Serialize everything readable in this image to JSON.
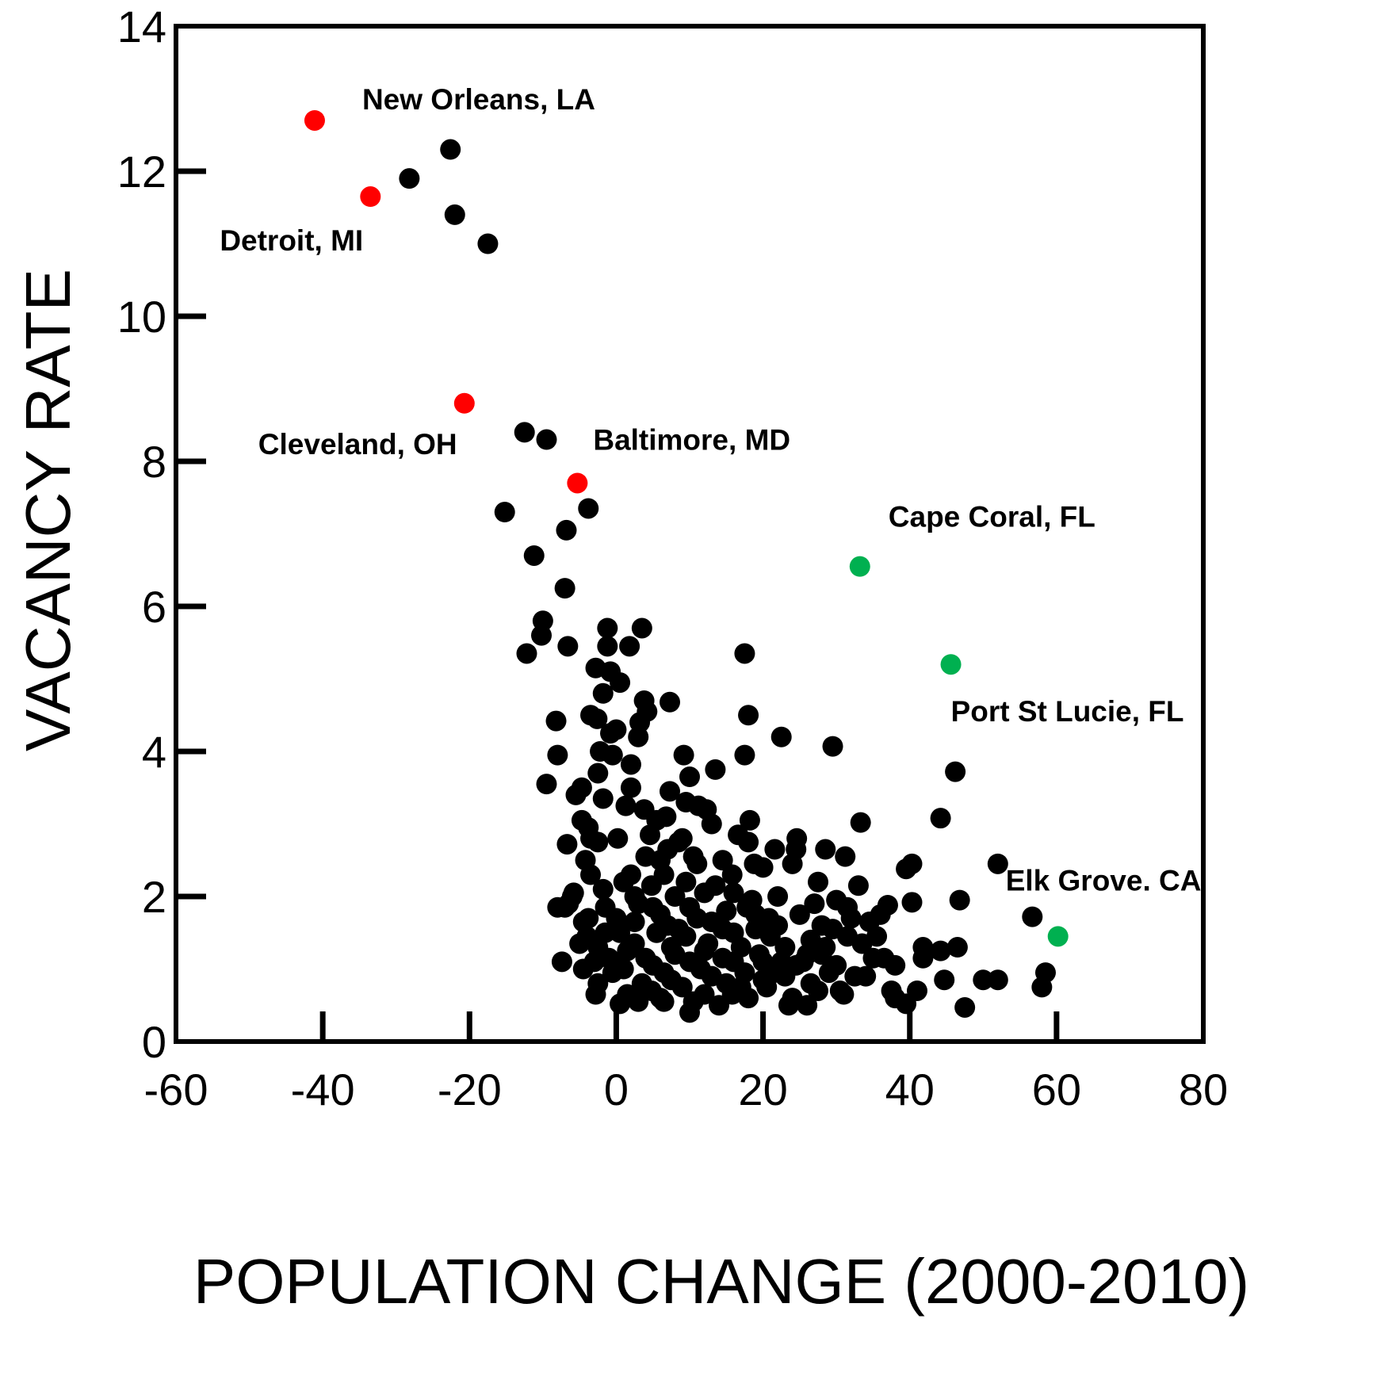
{
  "chart_data": {
    "type": "scatter",
    "title": "",
    "xlabel": "POPULATION CHANGE (2000-2010)",
    "ylabel": "VACANCY RATE",
    "xlim": [
      -60,
      80
    ],
    "ylim": [
      0,
      14
    ],
    "xticks": [
      -60,
      -40,
      -20,
      0,
      20,
      40,
      60,
      80
    ],
    "yticks": [
      0,
      2,
      4,
      6,
      8,
      10,
      12,
      14
    ],
    "grid": false,
    "colors": {
      "default": "#000000",
      "declining": "#ff0000",
      "growing": "#00b050"
    },
    "highlighted": [
      {
        "label": "New Orleans, LA",
        "x": -41.1,
        "y": 12.7,
        "color": "#ff0000"
      },
      {
        "label": "Detroit, MI",
        "x": -33.5,
        "y": 11.65,
        "color": "#ff0000"
      },
      {
        "label": "Cleveland, OH",
        "x": -20.7,
        "y": 8.8,
        "color": "#ff0000"
      },
      {
        "label": "Baltimore, MD",
        "x": -5.3,
        "y": 7.7,
        "color": "#ff0000"
      },
      {
        "label": "Cape Coral, FL",
        "x": 33.2,
        "y": 6.55,
        "color": "#00b050"
      },
      {
        "label": "Port St Lucie, FL",
        "x": 45.6,
        "y": 5.2,
        "color": "#00b050"
      },
      {
        "label": "Elk Grove. CA",
        "x": 60.2,
        "y": 1.45,
        "color": "#00b050"
      }
    ],
    "points": [
      [
        -22.6,
        12.3
      ],
      [
        -28.2,
        11.9
      ],
      [
        -22.0,
        11.4
      ],
      [
        -17.5,
        11.0
      ],
      [
        -12.5,
        8.4
      ],
      [
        -9.5,
        8.3
      ],
      [
        -15.2,
        7.3
      ],
      [
        -3.8,
        7.35
      ],
      [
        -6.8,
        7.05
      ],
      [
        -11.2,
        6.7
      ],
      [
        -7.0,
        6.25
      ],
      [
        -10.0,
        5.8
      ],
      [
        -10.2,
        5.6
      ],
      [
        -12.2,
        5.35
      ],
      [
        -6.6,
        5.45
      ],
      [
        -1.2,
        5.7
      ],
      [
        3.5,
        5.7
      ],
      [
        -1.2,
        5.45
      ],
      [
        1.8,
        5.45
      ],
      [
        -2.8,
        5.15
      ],
      [
        -0.8,
        5.1
      ],
      [
        0.5,
        4.95
      ],
      [
        -1.8,
        4.8
      ],
      [
        3.8,
        4.7
      ],
      [
        7.3,
        4.68
      ],
      [
        4.2,
        4.55
      ],
      [
        -3.5,
        4.5
      ],
      [
        -8.2,
        4.42
      ],
      [
        -2.6,
        4.45
      ],
      [
        3.2,
        4.4
      ],
      [
        0.0,
        4.3
      ],
      [
        -0.8,
        4.25
      ],
      [
        3.0,
        4.2
      ],
      [
        -2.2,
        4.0
      ],
      [
        -0.5,
        3.95
      ],
      [
        -8.0,
        3.95
      ],
      [
        9.2,
        3.95
      ],
      [
        -2.5,
        3.7
      ],
      [
        2.0,
        3.82
      ],
      [
        10.0,
        3.65
      ],
      [
        13.5,
        3.75
      ],
      [
        -9.5,
        3.55
      ],
      [
        -4.7,
        3.5
      ],
      [
        2.0,
        3.5
      ],
      [
        -5.5,
        3.4
      ],
      [
        7.3,
        3.45
      ],
      [
        -1.8,
        3.35
      ],
      [
        1.3,
        3.25
      ],
      [
        3.8,
        3.2
      ],
      [
        9.5,
        3.3
      ],
      [
        11.2,
        3.25
      ],
      [
        12.3,
        3.2
      ],
      [
        -4.7,
        3.05
      ],
      [
        6.8,
        3.1
      ],
      [
        5.5,
        3.05
      ],
      [
        13.0,
        3.0
      ],
      [
        18.2,
        3.05
      ],
      [
        -3.8,
        2.95
      ],
      [
        4.6,
        2.85
      ],
      [
        -6.7,
        2.72
      ],
      [
        -3.5,
        2.8
      ],
      [
        0.2,
        2.8
      ],
      [
        9.0,
        2.8
      ],
      [
        16.6,
        2.85
      ],
      [
        18.0,
        2.75
      ],
      [
        24.6,
        2.8
      ],
      [
        21.6,
        2.65
      ],
      [
        24.5,
        2.65
      ],
      [
        28.5,
        2.65
      ],
      [
        31.2,
        2.55
      ],
      [
        6.0,
        2.5
      ],
      [
        11.0,
        2.45
      ],
      [
        -4.2,
        2.5
      ],
      [
        20.0,
        2.4
      ],
      [
        24.0,
        2.45
      ],
      [
        18.8,
        2.45
      ],
      [
        15.8,
        2.3
      ],
      [
        -3.5,
        2.3
      ],
      [
        1.0,
        2.2
      ],
      [
        4.8,
        2.15
      ],
      [
        27.5,
        2.2
      ],
      [
        33.0,
        2.15
      ],
      [
        -5.8,
        2.05
      ],
      [
        2.5,
        2.0
      ],
      [
        8.0,
        2.0
      ],
      [
        12.0,
        2.05
      ],
      [
        18.5,
        1.95
      ],
      [
        30.0,
        1.95
      ],
      [
        -7.0,
        1.85
      ],
      [
        -1.5,
        1.85
      ],
      [
        5.0,
        1.85
      ],
      [
        10.0,
        1.85
      ],
      [
        15.0,
        1.8
      ],
      [
        19.0,
        1.75
      ],
      [
        25.0,
        1.75
      ],
      [
        32.0,
        1.7
      ],
      [
        36.0,
        1.75
      ],
      [
        -4.5,
        1.65
      ],
      [
        2.5,
        1.65
      ],
      [
        7.0,
        1.6
      ],
      [
        13.0,
        1.65
      ],
      [
        22.0,
        1.6
      ],
      [
        28.0,
        1.6
      ],
      [
        34.5,
        1.65
      ],
      [
        -4.0,
        1.45
      ],
      [
        0.5,
        1.5
      ],
      [
        5.5,
        1.5
      ],
      [
        9.5,
        1.45
      ],
      [
        16.0,
        1.5
      ],
      [
        21.0,
        1.45
      ],
      [
        26.5,
        1.4
      ],
      [
        31.5,
        1.45
      ],
      [
        -2.5,
        1.3
      ],
      [
        2.5,
        1.35
      ],
      [
        7.5,
        1.3
      ],
      [
        12.5,
        1.35
      ],
      [
        17.0,
        1.3
      ],
      [
        23.0,
        1.3
      ],
      [
        28.5,
        1.3
      ],
      [
        41.8,
        1.3
      ],
      [
        44.2,
        1.25
      ],
      [
        46.5,
        1.3
      ],
      [
        -7.4,
        1.1
      ],
      [
        -1.0,
        1.15
      ],
      [
        4.0,
        1.15
      ],
      [
        10.0,
        1.1
      ],
      [
        14.5,
        1.15
      ],
      [
        20.0,
        1.1
      ],
      [
        25.5,
        1.1
      ],
      [
        30.0,
        1.05
      ],
      [
        35.0,
        1.15
      ],
      [
        41.8,
        1.15
      ],
      [
        -4.5,
        1.0
      ],
      [
        1.0,
        1.0
      ],
      [
        6.5,
        0.95
      ],
      [
        11.5,
        1.0
      ],
      [
        17.5,
        0.95
      ],
      [
        23.0,
        0.9
      ],
      [
        29.0,
        0.95
      ],
      [
        34.0,
        0.9
      ],
      [
        58.5,
        0.95
      ],
      [
        -2.5,
        0.8
      ],
      [
        3.5,
        0.8
      ],
      [
        9.0,
        0.75
      ],
      [
        15.0,
        0.8
      ],
      [
        20.5,
        0.75
      ],
      [
        26.5,
        0.8
      ],
      [
        44.7,
        0.85
      ],
      [
        50.0,
        0.85
      ],
      [
        52.0,
        0.85
      ],
      [
        -2.8,
        0.65
      ],
      [
        1.5,
        0.65
      ],
      [
        6.0,
        0.6
      ],
      [
        12.0,
        0.65
      ],
      [
        18.0,
        0.6
      ],
      [
        24.0,
        0.6
      ],
      [
        31.0,
        0.65
      ],
      [
        37.5,
        0.7
      ],
      [
        41.0,
        0.7
      ],
      [
        58.0,
        0.75
      ],
      [
        0.5,
        0.52
      ],
      [
        6.5,
        0.55
      ],
      [
        14.0,
        0.5
      ],
      [
        23.5,
        0.5
      ],
      [
        26.0,
        0.5
      ],
      [
        38.0,
        0.6
      ],
      [
        39.5,
        0.52
      ],
      [
        47.5,
        0.47
      ],
      [
        10.0,
        0.4
      ],
      [
        17.5,
        5.35
      ],
      [
        18.0,
        4.5
      ],
      [
        22.5,
        4.2
      ],
      [
        29.5,
        4.07
      ],
      [
        17.5,
        3.95
      ],
      [
        46.2,
        3.72
      ],
      [
        33.3,
        3.02
      ],
      [
        44.2,
        3.08
      ],
      [
        52.0,
        2.45
      ],
      [
        39.5,
        2.38
      ],
      [
        40.3,
        2.45
      ],
      [
        40.3,
        1.92
      ],
      [
        46.8,
        1.95
      ],
      [
        56.7,
        1.72
      ],
      [
        38.0,
        1.05
      ],
      [
        -8.0,
        1.85
      ],
      [
        -6.0,
        2.0
      ],
      [
        13.5,
        2.15
      ],
      [
        16.0,
        2.05
      ],
      [
        22.0,
        2.0
      ],
      [
        27.0,
        1.9
      ],
      [
        37.0,
        1.88
      ],
      [
        19.0,
        1.55
      ],
      [
        33.5,
        1.35
      ],
      [
        28.0,
        1.2
      ],
      [
        0.0,
        1.7
      ],
      [
        3.0,
        1.9
      ],
      [
        8.5,
        1.55
      ],
      [
        11.0,
        1.7
      ],
      [
        14.5,
        1.55
      ],
      [
        -1.5,
        1.5
      ],
      [
        1.5,
        1.25
      ],
      [
        5.0,
        1.05
      ],
      [
        8.0,
        1.2
      ],
      [
        12.0,
        1.25
      ],
      [
        16.0,
        1.1
      ],
      [
        19.5,
        1.2
      ],
      [
        22.5,
        1.1
      ],
      [
        -0.5,
        0.95
      ],
      [
        3.0,
        0.55
      ],
      [
        7.5,
        0.85
      ],
      [
        13.0,
        0.9
      ],
      [
        17.0,
        0.75
      ],
      [
        21.5,
        0.95
      ],
      [
        27.5,
        0.7
      ],
      [
        32.5,
        0.9
      ],
      [
        36.5,
        1.15
      ],
      [
        -3.0,
        1.1
      ],
      [
        2.0,
        2.3
      ],
      [
        6.5,
        2.3
      ],
      [
        9.5,
        2.2
      ],
      [
        4.0,
        2.55
      ],
      [
        7.0,
        2.65
      ],
      [
        8.5,
        2.75
      ],
      [
        10.5,
        2.55
      ],
      [
        14.5,
        2.5
      ],
      [
        -2.5,
        2.75
      ],
      [
        -5.0,
        1.35
      ],
      [
        -3.8,
        1.7
      ],
      [
        0.2,
        1.05
      ],
      [
        4.8,
        0.7
      ],
      [
        10.5,
        0.55
      ],
      [
        15.8,
        0.65
      ],
      [
        20.0,
        0.85
      ],
      [
        24.5,
        1.05
      ],
      [
        29.5,
        1.55
      ],
      [
        30.5,
        0.7
      ],
      [
        35.5,
        1.45
      ],
      [
        -6.5,
        1.9
      ],
      [
        -1.8,
        2.1
      ],
      [
        6.0,
        1.75
      ],
      [
        17.8,
        1.85
      ],
      [
        20.8,
        1.7
      ],
      [
        26.0,
        1.2
      ],
      [
        31.5,
        1.85
      ]
    ]
  }
}
